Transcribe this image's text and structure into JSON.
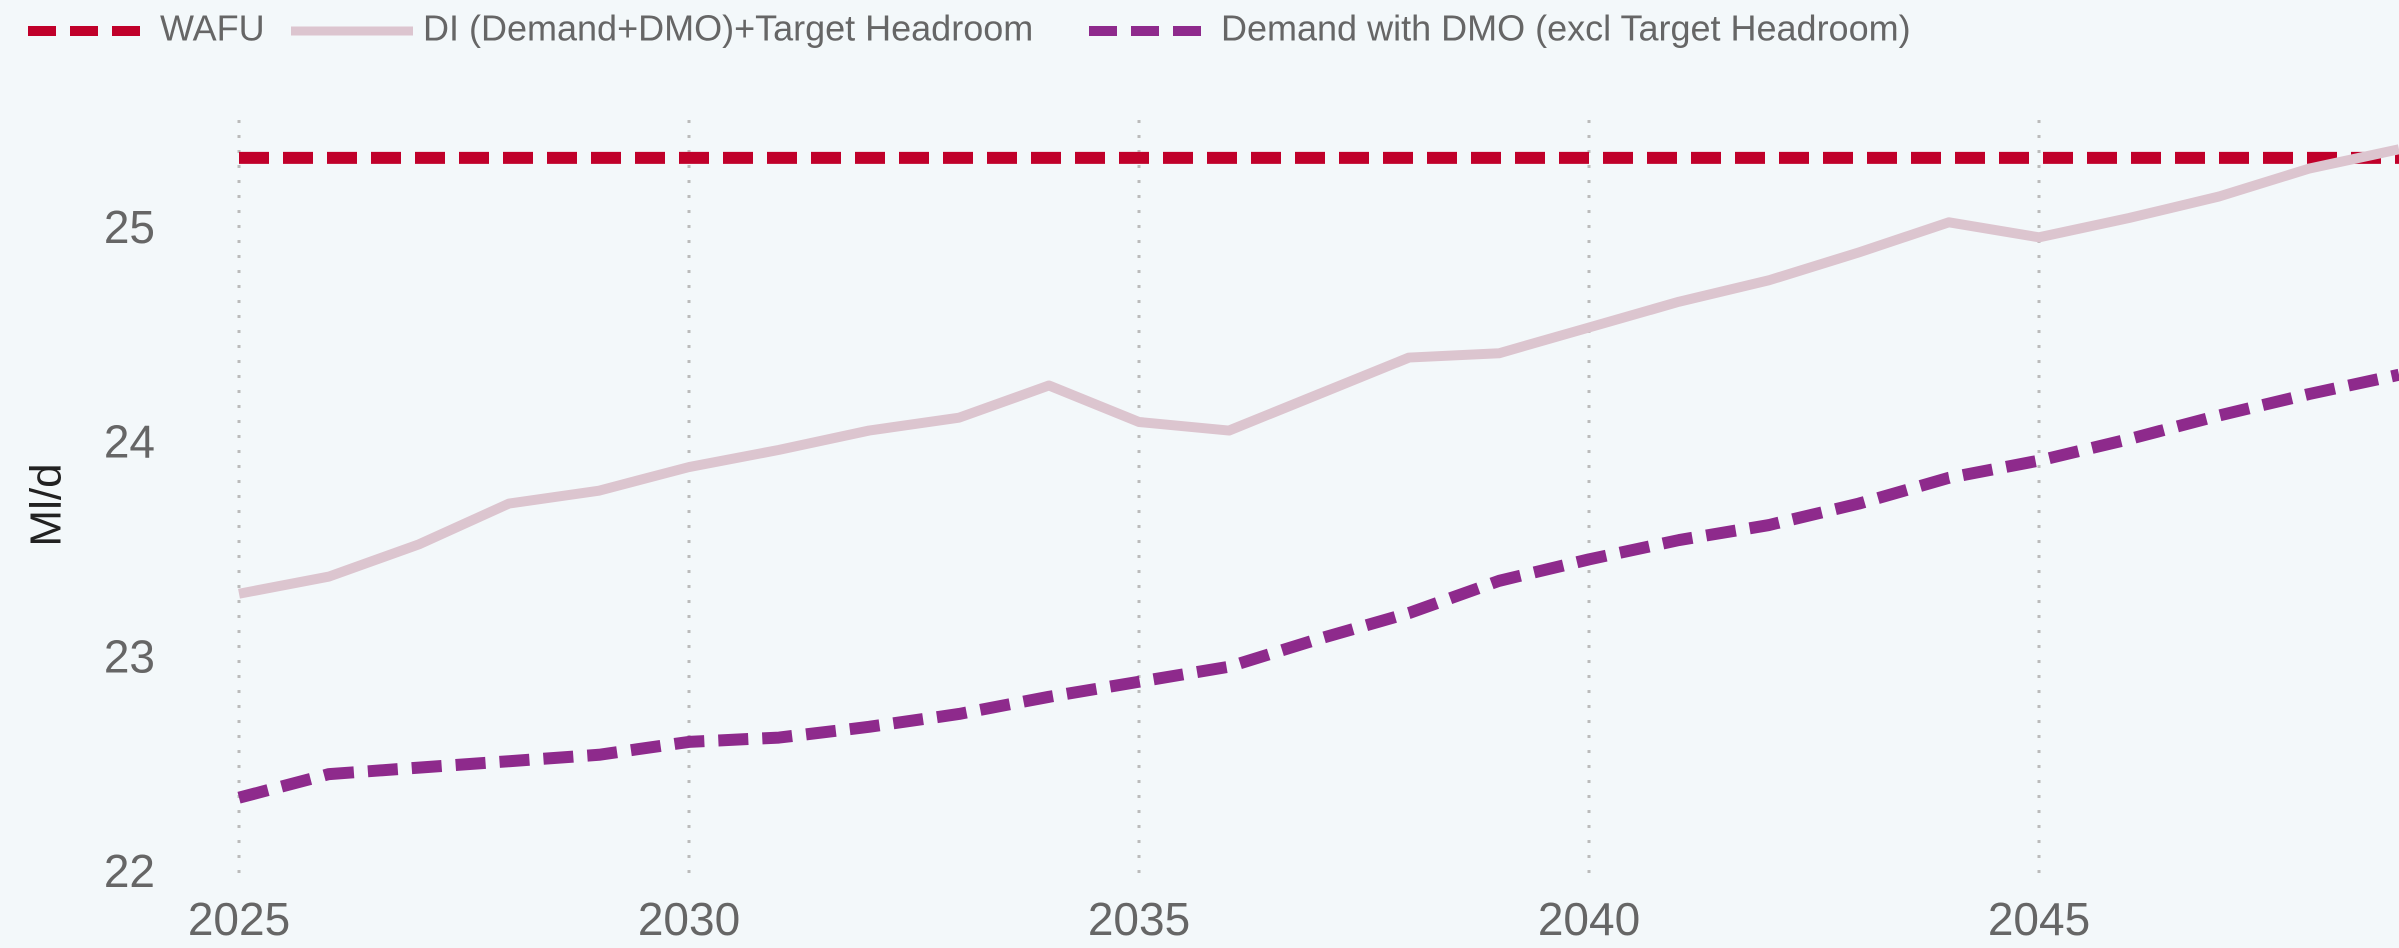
{
  "chart_data": {
    "type": "line",
    "ylabel": "Ml/d",
    "x": [
      2025,
      2026,
      2027,
      2028,
      2029,
      2030,
      2031,
      2032,
      2033,
      2034,
      2035,
      2036,
      2037,
      2038,
      2039,
      2040,
      2041,
      2042,
      2043,
      2044,
      2045,
      2046,
      2047,
      2048,
      2049
    ],
    "series": [
      {
        "name": "WAFU",
        "color": "#c0002a",
        "dash": true,
        "values": [
          25.34,
          25.34,
          25.34,
          25.34,
          25.34,
          25.34,
          25.34,
          25.34,
          25.34,
          25.34,
          25.34,
          25.34,
          25.34,
          25.34,
          25.34,
          25.34,
          25.34,
          25.34,
          25.34,
          25.34,
          25.34,
          25.34,
          25.34,
          25.34,
          25.34
        ]
      },
      {
        "name": "DI (Demand+DMO)+Target Headroom",
        "color": "#dcc5cf",
        "dash": false,
        "values": [
          23.31,
          23.39,
          23.54,
          23.73,
          23.79,
          23.9,
          23.98,
          24.07,
          24.13,
          24.28,
          24.11,
          24.07,
          24.24,
          24.41,
          24.43,
          24.55,
          24.67,
          24.77,
          24.9,
          25.04,
          24.97,
          25.06,
          25.16,
          25.29,
          25.38
        ]
      },
      {
        "name": "Demand with DMO (excl Target Headroom)",
        "color": "#8e2a8c",
        "dash": true,
        "values": [
          22.36,
          22.47,
          22.5,
          22.53,
          22.56,
          22.62,
          22.64,
          22.69,
          22.75,
          22.83,
          22.9,
          22.97,
          23.1,
          23.22,
          23.37,
          23.47,
          23.56,
          23.63,
          23.73,
          23.85,
          23.93,
          24.03,
          24.14,
          24.24,
          24.33
        ]
      }
    ],
    "xlim": [
      2025,
      2049
    ],
    "xticks": [
      2025,
      2030,
      2035,
      2040,
      2045
    ],
    "ylim": [
      22,
      25.4
    ],
    "yticks": [
      22,
      23,
      24,
      25
    ],
    "grid": true
  }
}
